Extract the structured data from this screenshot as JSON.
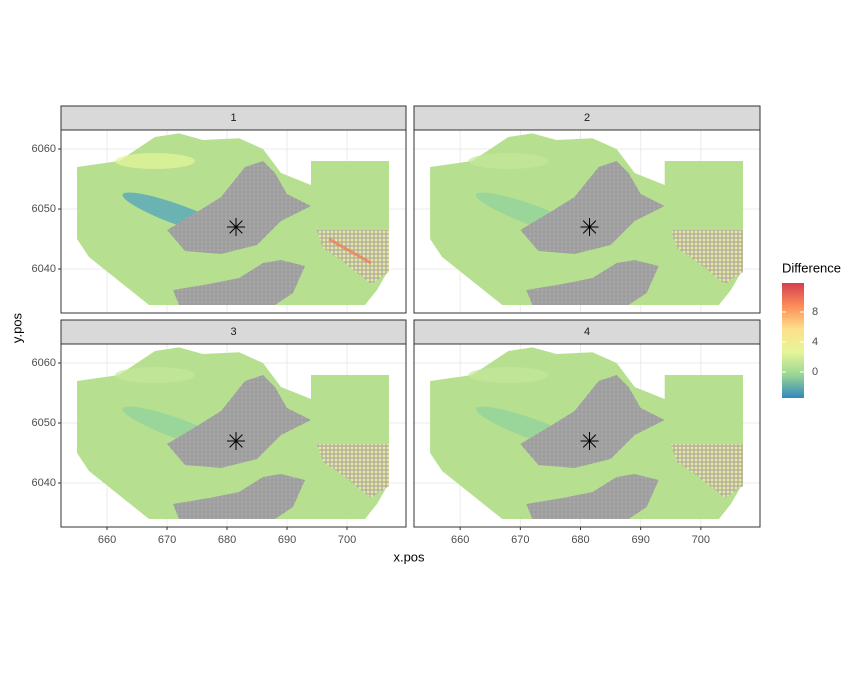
{
  "chart_data": {
    "type": "raster",
    "facets": [
      "1",
      "2",
      "3",
      "4"
    ],
    "x_label": "x.pos",
    "y_label": "y.pos",
    "xlim": [
      652.33,
      709.83
    ],
    "xticks": [
      660,
      670,
      680,
      690,
      700
    ],
    "ylim": [
      6032.67,
      6063.17
    ],
    "yticks": [
      6040,
      6050,
      6060
    ],
    "grid": true,
    "marker": {
      "x": 681.5,
      "y": 6047
    },
    "legend": {
      "title": "Difference",
      "lim": [
        -3.47,
        11.87
      ],
      "ticks": [
        0,
        4,
        8
      ],
      "colors": [
        "#3288bd",
        "#99d594",
        "#e6f598",
        "#fee08b",
        "#fc8d59",
        "#d53e4f"
      ]
    }
  }
}
